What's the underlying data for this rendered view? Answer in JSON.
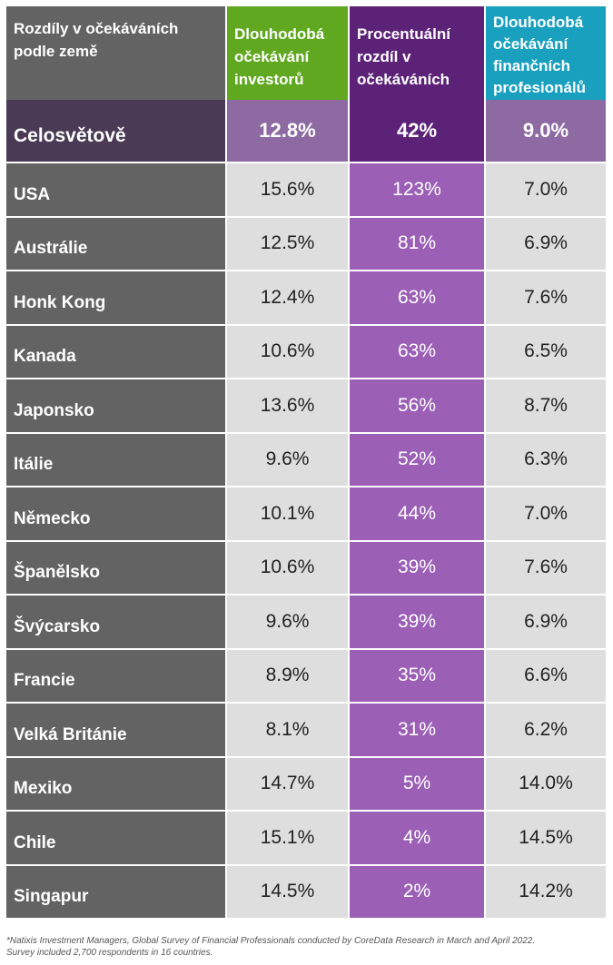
{
  "colors": {
    "row_label_bg": "#636363",
    "value_bg": "#dedede",
    "gap_bg": "#9b5fb5",
    "header_investors": "#5fa81f",
    "header_gap": "#5c2277",
    "header_professionals": "#1aa0bf",
    "global_label_bg": "#4a3a55",
    "global_value_bg": "#8e6aa3"
  },
  "header": {
    "col0": "Rozdíly v očekáváních podle země",
    "col1": "Dlouhodobá očekávání investorů",
    "col2": "Procentuální rozdíl v očekáváních",
    "col3": "Dlouhodobá očekávání finančních profesionálů"
  },
  "chart_data": {
    "type": "table",
    "columns": [
      "Rozdíly v očekáváních podle země",
      "Dlouhodobá očekávání investorů",
      "Procentuální rozdíl v očekáváních",
      "Dlouhodobá očekávání finančních profesionálů"
    ],
    "rows": [
      {
        "country": "Celosvětově",
        "investors": "12.8%",
        "gap": "42%",
        "professionals": "9.0%"
      },
      {
        "country": "USA",
        "investors": "15.6%",
        "gap": "123%",
        "professionals": "7.0%"
      },
      {
        "country": "Austrálie",
        "investors": "12.5%",
        "gap": "81%",
        "professionals": "6.9%"
      },
      {
        "country": "Honk Kong",
        "investors": "12.4%",
        "gap": "63%",
        "professionals": "7.6%"
      },
      {
        "country": "Kanada",
        "investors": "10.6%",
        "gap": "63%",
        "professionals": "6.5%"
      },
      {
        "country": "Japonsko",
        "investors": "13.6%",
        "gap": "56%",
        "professionals": "8.7%"
      },
      {
        "country": "Itálie",
        "investors": "9.6%",
        "gap": "52%",
        "professionals": "6.3%"
      },
      {
        "country": "Německo",
        "investors": "10.1%",
        "gap": "44%",
        "professionals": "7.0%"
      },
      {
        "country": "Španělsko",
        "investors": "10.6%",
        "gap": "39%",
        "professionals": "7.6%"
      },
      {
        "country": "Švýcarsko",
        "investors": "9.6%",
        "gap": "39%",
        "professionals": "6.9%"
      },
      {
        "country": "Francie",
        "investors": "8.9%",
        "gap": "35%",
        "professionals": "6.6%"
      },
      {
        "country": "Velká Británie",
        "investors": "8.1%",
        "gap": "31%",
        "professionals": "6.2%"
      },
      {
        "country": "Mexiko",
        "investors": "14.7%",
        "gap": "5%",
        "professionals": "14.0%"
      },
      {
        "country": "Chile",
        "investors": "15.1%",
        "gap": "4%",
        "professionals": "14.5%"
      },
      {
        "country": "Singapur",
        "investors": "14.5%",
        "gap": "2%",
        "professionals": "14.2%"
      }
    ]
  },
  "footnote": {
    "line1": "*Natixis Investment Managers, Global Survey of Financial Professionals conducted by CoreData Research in March and April 2022.",
    "line2": "Survey included 2,700 respondents in 16 countries."
  }
}
